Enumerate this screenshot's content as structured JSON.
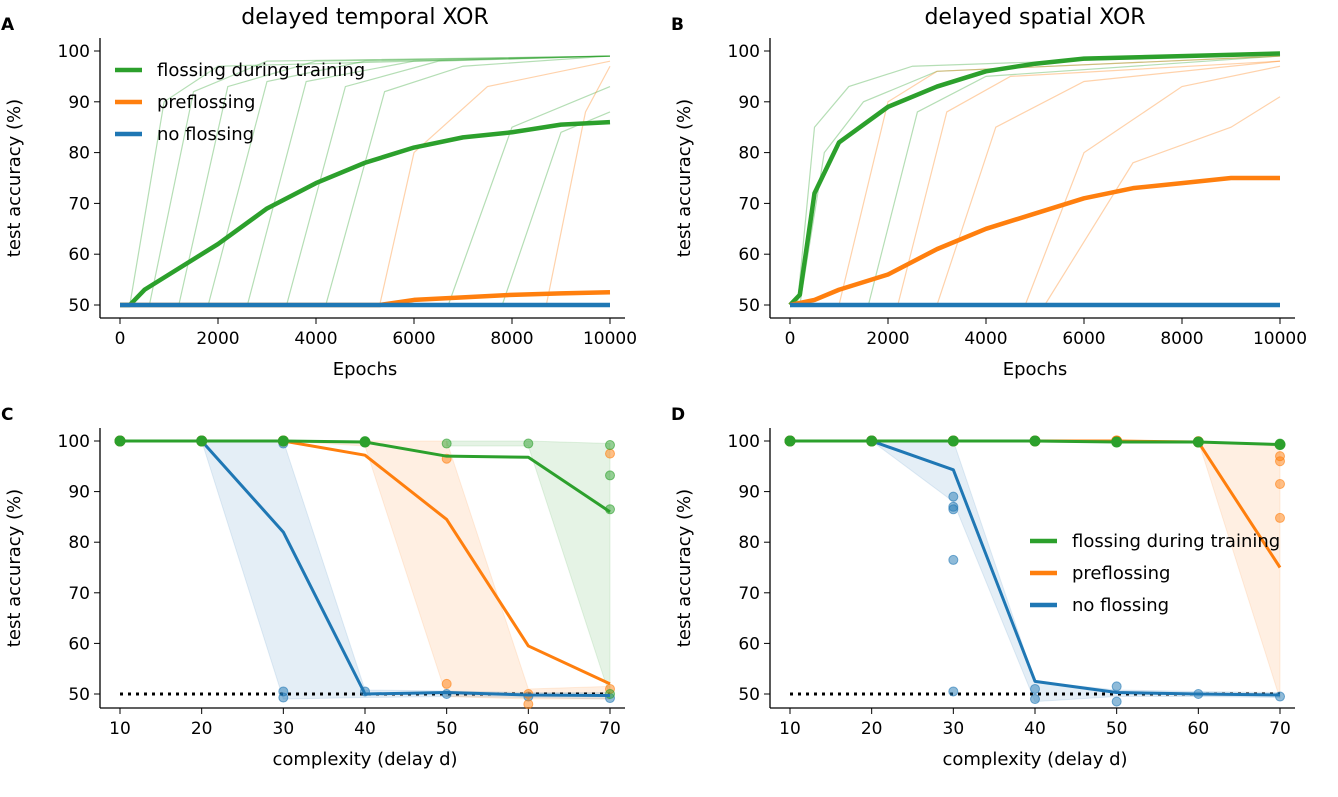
{
  "colors": {
    "green": "#2ca02c",
    "orange": "#ff7f0e",
    "blue": "#1f77b4"
  },
  "chart_data": [
    {
      "panel": "A",
      "type": "line",
      "title": "delayed temporal XOR",
      "xlabel": "Epochs",
      "ylabel": "test accuracy (%)",
      "xlim": [
        0,
        10000
      ],
      "ylim": [
        48,
        101
      ],
      "xticks": [
        0,
        2000,
        4000,
        6000,
        8000,
        10000
      ],
      "yticks": [
        50,
        60,
        70,
        80,
        90,
        100
      ],
      "legend": {
        "position": "top-left",
        "entries": [
          "flossing during training",
          "preflossing",
          "no flossing"
        ]
      },
      "series": [
        {
          "name": "flossing during training",
          "color": "green",
          "x": [
            0,
            200,
            500,
            1000,
            2000,
            3000,
            4000,
            5000,
            6000,
            7000,
            8000,
            9000,
            10000
          ],
          "y": [
            50,
            50,
            53,
            56,
            62,
            69,
            74,
            78,
            81,
            83,
            84,
            85.5,
            86
          ]
        },
        {
          "name": "preflossing",
          "color": "orange",
          "x": [
            0,
            5300,
            6000,
            7000,
            8000,
            9000,
            10000
          ],
          "y": [
            50,
            50,
            51,
            51.5,
            52,
            52.3,
            52.5
          ]
        },
        {
          "name": "no flossing",
          "color": "blue",
          "x": [
            0,
            2000,
            4000,
            6000,
            8000,
            10000
          ],
          "y": [
            50,
            50,
            50,
            50,
            50,
            50
          ]
        }
      ],
      "runs": [
        {
          "color": "green",
          "x": [
            0,
            200,
            900,
            2000,
            10000
          ],
          "y": [
            50,
            50,
            90,
            97,
            99
          ]
        },
        {
          "color": "green",
          "x": [
            0,
            600,
            1500,
            3000,
            10000
          ],
          "y": [
            50,
            50,
            92,
            98,
            99
          ]
        },
        {
          "color": "green",
          "x": [
            0,
            1200,
            2200,
            4000,
            10000
          ],
          "y": [
            50,
            50,
            93,
            98,
            99
          ]
        },
        {
          "color": "green",
          "x": [
            0,
            1800,
            3000,
            5000,
            10000
          ],
          "y": [
            50,
            50,
            94,
            98,
            99
          ]
        },
        {
          "color": "green",
          "x": [
            0,
            2600,
            3800,
            6000,
            10000
          ],
          "y": [
            50,
            50,
            94,
            98,
            99
          ]
        },
        {
          "color": "green",
          "x": [
            0,
            3400,
            4600,
            6500,
            10000
          ],
          "y": [
            50,
            50,
            93,
            98,
            99
          ]
        },
        {
          "color": "green",
          "x": [
            0,
            4200,
            5400,
            7000,
            10000
          ],
          "y": [
            50,
            50,
            92,
            97,
            99
          ]
        },
        {
          "color": "green",
          "x": [
            0,
            6700,
            8000,
            10000
          ],
          "y": [
            50,
            50,
            85,
            93
          ]
        },
        {
          "color": "green",
          "x": [
            0,
            7800,
            9000,
            10000
          ],
          "y": [
            50,
            50,
            84,
            88
          ]
        },
        {
          "color": "orange",
          "x": [
            0,
            5300,
            6000,
            7500,
            10000
          ],
          "y": [
            50,
            50,
            80,
            93,
            98
          ]
        },
        {
          "color": "orange",
          "x": [
            0,
            8700,
            9500,
            10000
          ],
          "y": [
            50,
            50,
            88,
            97
          ]
        }
      ]
    },
    {
      "panel": "B",
      "type": "line",
      "title": "delayed spatial XOR",
      "xlabel": "Epochs",
      "ylabel": "test accuracy (%)",
      "xlim": [
        0,
        10000
      ],
      "ylim": [
        48,
        101
      ],
      "xticks": [
        0,
        2000,
        4000,
        6000,
        8000,
        10000
      ],
      "yticks": [
        50,
        60,
        70,
        80,
        90,
        100
      ],
      "series": [
        {
          "name": "flossing during training",
          "color": "green",
          "x": [
            0,
            200,
            500,
            1000,
            2000,
            3000,
            4000,
            5000,
            6000,
            8000,
            10000
          ],
          "y": [
            50,
            52,
            72,
            82,
            89,
            93,
            96,
            97.5,
            98.5,
            99,
            99.5
          ]
        },
        {
          "name": "preflossing",
          "color": "orange",
          "x": [
            0,
            500,
            1000,
            2000,
            3000,
            4000,
            5000,
            6000,
            7000,
            8000,
            9000,
            10000
          ],
          "y": [
            50,
            51,
            53,
            56,
            61,
            65,
            68,
            71,
            73,
            74,
            75,
            75
          ]
        },
        {
          "name": "no flossing",
          "color": "blue",
          "x": [
            0,
            2000,
            4000,
            6000,
            8000,
            10000
          ],
          "y": [
            50,
            50,
            50,
            50,
            50,
            50
          ]
        }
      ],
      "runs": [
        {
          "color": "green",
          "x": [
            0,
            200,
            700,
            1500,
            3000,
            10000
          ],
          "y": [
            50,
            50,
            80,
            90,
            96,
            99
          ]
        },
        {
          "color": "green",
          "x": [
            0,
            150,
            500,
            1200,
            2500,
            10000
          ],
          "y": [
            50,
            50,
            85,
            93,
            97,
            99.5
          ]
        },
        {
          "color": "green",
          "x": [
            0,
            1600,
            2600,
            4000,
            10000
          ],
          "y": [
            50,
            50,
            88,
            95,
            99
          ]
        },
        {
          "color": "orange",
          "x": [
            0,
            1000,
            2000,
            3000,
            10000
          ],
          "y": [
            50,
            50,
            90,
            96,
            99
          ]
        },
        {
          "color": "orange",
          "x": [
            0,
            2200,
            3200,
            4500,
            10000
          ],
          "y": [
            50,
            50,
            88,
            95,
            98
          ]
        },
        {
          "color": "orange",
          "x": [
            0,
            3000,
            4200,
            6000,
            10000
          ],
          "y": [
            50,
            50,
            85,
            94,
            98
          ]
        },
        {
          "color": "orange",
          "x": [
            0,
            4800,
            6000,
            8000,
            10000
          ],
          "y": [
            50,
            50,
            80,
            93,
            97
          ]
        },
        {
          "color": "orange",
          "x": [
            0,
            5200,
            7000,
            9000,
            10000
          ],
          "y": [
            50,
            50,
            78,
            85,
            91
          ]
        }
      ]
    },
    {
      "panel": "C",
      "type": "line",
      "xlabel": "complexity (delay d)",
      "ylabel": "test accuracy (%)",
      "xlim": [
        7,
        72
      ],
      "ylim": [
        47.5,
        101
      ],
      "xticks": [
        10,
        20,
        30,
        40,
        50,
        60,
        70
      ],
      "yticks": [
        50,
        60,
        70,
        80,
        90,
        100
      ],
      "chance_level": 50,
      "series": [
        {
          "name": "flossing during training",
          "color": "green",
          "x": [
            10,
            20,
            30,
            40,
            50,
            60,
            70
          ],
          "y": [
            100,
            100,
            100,
            99.8,
            97,
            96.8,
            86
          ]
        },
        {
          "name": "preflossing",
          "color": "orange",
          "x": [
            10,
            20,
            30,
            40,
            50,
            60,
            70
          ],
          "y": [
            100,
            100,
            100,
            97.2,
            84.5,
            59.5,
            52
          ]
        },
        {
          "name": "no flossing",
          "color": "blue",
          "x": [
            10,
            20,
            30,
            40,
            50,
            60,
            70
          ],
          "y": [
            100,
            100,
            82,
            50,
            50.3,
            49.8,
            49.7
          ]
        }
      ],
      "bands": [
        {
          "color": "blue",
          "x": [
            20,
            30,
            40,
            50,
            60,
            70
          ],
          "max": [
            100,
            100,
            50.8,
            50.6,
            50.3,
            50.3
          ],
          "min": [
            100,
            49,
            49.3,
            49.5,
            49.3,
            49
          ]
        },
        {
          "color": "orange",
          "x": [
            30,
            40,
            50,
            60,
            70
          ],
          "max": [
            100,
            100,
            100,
            51,
            51.5
          ],
          "min": [
            100,
            99,
            49.5,
            49,
            49
          ]
        },
        {
          "color": "green",
          "x": [
            50,
            60,
            70
          ],
          "max": [
            100,
            100,
            99.5
          ],
          "min": [
            99,
            99,
            49.5
          ]
        }
      ],
      "points": [
        {
          "color": "blue",
          "x": [
            30,
            30,
            30,
            40,
            50,
            60,
            70
          ],
          "y": [
            49.3,
            50.5,
            99.5,
            50.5,
            50,
            49.5,
            49.2
          ]
        },
        {
          "color": "orange",
          "x": [
            50,
            50,
            60,
            60,
            70,
            70
          ],
          "y": [
            96.5,
            52,
            50,
            48,
            97.5,
            51
          ]
        },
        {
          "color": "green",
          "x": [
            10,
            20,
            30,
            40,
            50,
            60,
            70,
            70,
            70,
            70
          ],
          "y": [
            100,
            100,
            100,
            100,
            99.5,
            99.5,
            99.2,
            93.2,
            86.5,
            50
          ]
        }
      ]
    },
    {
      "panel": "D",
      "type": "line",
      "xlabel": "complexity (delay d)",
      "ylabel": "test accuracy (%)",
      "xlim": [
        7,
        72
      ],
      "ylim": [
        47.5,
        101
      ],
      "xticks": [
        10,
        20,
        30,
        40,
        50,
        60,
        70
      ],
      "yticks": [
        50,
        60,
        70,
        80,
        90,
        100
      ],
      "chance_level": 50,
      "legend": {
        "position": "center-right",
        "entries": [
          "flossing during training",
          "preflossing",
          "no flossing"
        ]
      },
      "series": [
        {
          "name": "flossing during training",
          "color": "green",
          "x": [
            10,
            20,
            30,
            40,
            50,
            60,
            70
          ],
          "y": [
            100,
            100,
            100,
            100,
            99.8,
            99.8,
            99.3
          ]
        },
        {
          "name": "preflossing",
          "color": "orange",
          "x": [
            10,
            20,
            30,
            40,
            50,
            60,
            70
          ],
          "y": [
            100,
            100,
            100,
            100,
            100,
            99.8,
            75
          ]
        },
        {
          "name": "no flossing",
          "color": "blue",
          "x": [
            10,
            20,
            30,
            40,
            50,
            60,
            70
          ],
          "y": [
            100,
            100,
            94.3,
            52.5,
            50.3,
            50,
            49.8
          ]
        }
      ],
      "bands": [
        {
          "color": "blue",
          "x": [
            20,
            30,
            40,
            50,
            60,
            70
          ],
          "max": [
            100,
            100,
            52.5,
            50.8,
            50.5,
            50.3
          ],
          "min": [
            100,
            88,
            48.5,
            49.5,
            49.5,
            49.3
          ]
        },
        {
          "color": "orange",
          "x": [
            60,
            70
          ],
          "max": [
            100,
            99
          ],
          "min": [
            100,
            49
          ]
        }
      ],
      "points": [
        {
          "color": "blue",
          "x": [
            10,
            20,
            30,
            30,
            30,
            30,
            30,
            30,
            40,
            40,
            50,
            50,
            60,
            70
          ],
          "y": [
            100,
            100,
            100,
            89,
            87,
            86.5,
            76.5,
            50.5,
            49,
            51,
            48.5,
            51.5,
            50,
            49.5
          ]
        },
        {
          "color": "orange",
          "x": [
            50,
            60,
            70,
            70,
            70,
            70
          ],
          "y": [
            100,
            100,
            97,
            96,
            91.5,
            84.8
          ]
        },
        {
          "color": "green",
          "x": [
            40,
            70
          ],
          "y": [
            100,
            99.5
          ]
        }
      ]
    }
  ],
  "panel_labels": [
    "A",
    "B",
    "C",
    "D"
  ]
}
